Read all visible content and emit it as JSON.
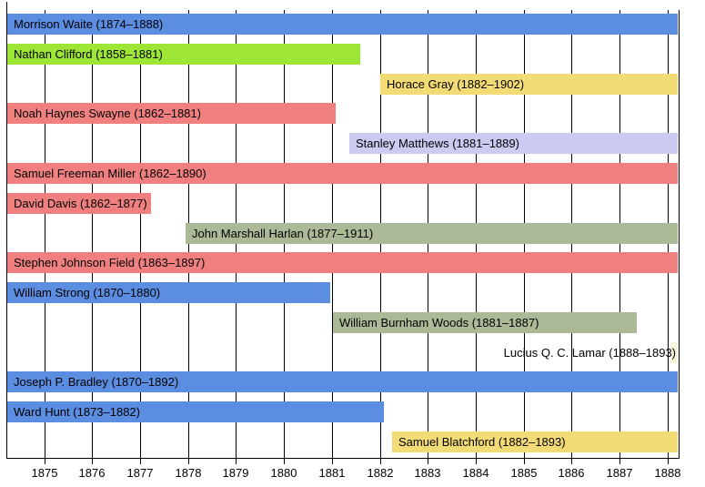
{
  "chart_data": {
    "type": "gantt",
    "title": "",
    "x_axis": {
      "tick_labels": [
        "1875",
        "1876",
        "1877",
        "1878",
        "1879",
        "1880",
        "1881",
        "1882",
        "1883",
        "1884",
        "1885",
        "1886",
        "1887",
        "1888"
      ],
      "tick_years": [
        1875,
        1876,
        1877,
        1878,
        1879,
        1880,
        1881,
        1882,
        1883,
        1884,
        1885,
        1886,
        1887,
        1888
      ],
      "range_years": [
        1874.21,
        1888.23
      ],
      "grid": true
    },
    "colors": {
      "background": "#ffffff",
      "grid": "#000000",
      "text": "#000000",
      "blue": "#5b8de1",
      "green": "#9de636",
      "coral": "#f08080",
      "yellow": "#f2db74",
      "lavender": "#cbcbf2",
      "sage": "#abb996",
      "cream": "#f7f3da"
    },
    "rows": [
      {
        "label": "Morrison Waite (1874–1888)",
        "bar_start": 1874.21,
        "bar_end": 1888.23,
        "color": "#5b8de1",
        "label_position": "inside"
      },
      {
        "label": "Nathan Clifford (1858–1881)",
        "bar_start": 1874.21,
        "bar_end": 1881.6,
        "color": "#9de636",
        "label_position": "inside"
      },
      {
        "label": "Horace Gray (1882–1902)",
        "bar_start": 1882.0,
        "bar_end": 1888.23,
        "color": "#f2db74",
        "label_position": "inside"
      },
      {
        "label": "Noah Haynes Swayne (1862–1881)",
        "bar_start": 1874.21,
        "bar_end": 1881.07,
        "color": "#f08080",
        "label_position": "inside"
      },
      {
        "label": "Stanley Matthews (1881–1889)",
        "bar_start": 1881.37,
        "bar_end": 1888.23,
        "color": "#cbcbf2",
        "label_position": "inside"
      },
      {
        "label": "Samuel Freeman Miller (1862–1890)",
        "bar_start": 1874.21,
        "bar_end": 1888.23,
        "color": "#f08080",
        "label_position": "inside"
      },
      {
        "label": "David Davis (1862–1877)",
        "bar_start": 1874.21,
        "bar_end": 1877.22,
        "color": "#f08080",
        "label_position": "inside"
      },
      {
        "label": "John Marshall Harlan (1877–1911)",
        "bar_start": 1877.95,
        "bar_end": 1888.23,
        "color": "#abb996",
        "label_position": "inside"
      },
      {
        "label": "Stephen Johnson Field (1863–1897)",
        "bar_start": 1874.21,
        "bar_end": 1888.23,
        "color": "#f08080",
        "label_position": "inside"
      },
      {
        "label": "William Strong (1870–1880)",
        "bar_start": 1874.21,
        "bar_end": 1880.97,
        "color": "#5b8de1",
        "label_position": "inside"
      },
      {
        "label": "William Burnham Woods (1881–1887)",
        "bar_start": 1881.02,
        "bar_end": 1887.36,
        "color": "#abb996",
        "label_position": "inside"
      },
      {
        "label": "Lucius Q. C. Lamar (1888–1893)",
        "bar_start": 1888.06,
        "bar_end": 1888.23,
        "color": "#f7f3da",
        "label_position": "left-of-bar"
      },
      {
        "label": "Joseph P. Bradley (1870–1892)",
        "bar_start": 1874.21,
        "bar_end": 1888.23,
        "color": "#5b8de1",
        "label_position": "inside"
      },
      {
        "label": "Ward Hunt (1873–1882)",
        "bar_start": 1874.21,
        "bar_end": 1882.09,
        "color": "#5b8de1",
        "label_position": "inside"
      },
      {
        "label": "Samuel Blatchford (1882–1893)",
        "bar_start": 1882.25,
        "bar_end": 1888.23,
        "color": "#f2db74",
        "label_position": "inside"
      }
    ]
  }
}
